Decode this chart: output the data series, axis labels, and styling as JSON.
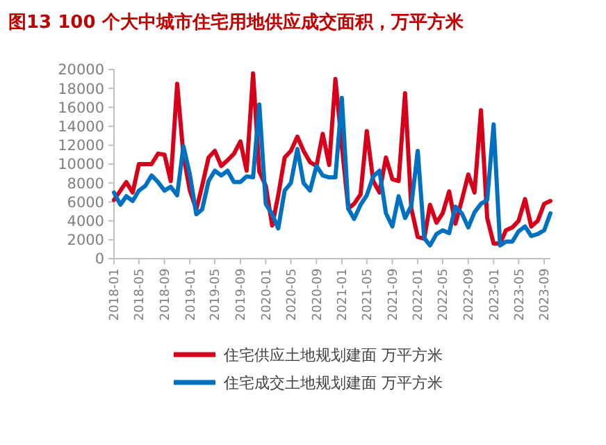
{
  "chart_data": {
    "type": "line",
    "title": "图13  100 个大中城市住宅用地供应成交面积，万平方米",
    "x": [
      "2018-01",
      "2018-02",
      "2018-03",
      "2018-04",
      "2018-05",
      "2018-06",
      "2018-07",
      "2018-08",
      "2018-09",
      "2018-10",
      "2018-11",
      "2018-12",
      "2019-01",
      "2019-02",
      "2019-03",
      "2019-04",
      "2019-05",
      "2019-06",
      "2019-07",
      "2019-08",
      "2019-09",
      "2019-10",
      "2019-11",
      "2019-12",
      "2020-01",
      "2020-02",
      "2020-03",
      "2020-04",
      "2020-05",
      "2020-06",
      "2020-07",
      "2020-08",
      "2020-09",
      "2020-10",
      "2020-11",
      "2020-12",
      "2021-01",
      "2021-02",
      "2021-03",
      "2021-04",
      "2021-05",
      "2021-06",
      "2021-07",
      "2021-08",
      "2021-09",
      "2021-10",
      "2021-11",
      "2021-12",
      "2022-01",
      "2022-02",
      "2022-03",
      "2022-04",
      "2022-05",
      "2022-06",
      "2022-07",
      "2022-08",
      "2022-09",
      "2022-10",
      "2022-11",
      "2022-12",
      "2023-01",
      "2023-02",
      "2023-03",
      "2023-04",
      "2023-05",
      "2023-06",
      "2023-07",
      "2023-08",
      "2023-09",
      "2023-10"
    ],
    "series": [
      {
        "name": "住宅供应土地规划建面 万平方米",
        "color": "#d7001a",
        "values": [
          6200,
          7200,
          8100,
          7000,
          10000,
          10000,
          10000,
          11100,
          11000,
          8200,
          18500,
          10900,
          7200,
          5200,
          7700,
          10700,
          11400,
          9800,
          10400,
          11100,
          12400,
          9300,
          19600,
          9200,
          7700,
          3500,
          6700,
          10700,
          11400,
          12900,
          11400,
          10200,
          9800,
          13200,
          9900,
          19000,
          11900,
          5300,
          5800,
          6800,
          13500,
          8200,
          7000,
          10700,
          8400,
          8200,
          17500,
          5300,
          2300,
          2100,
          5700,
          3800,
          4800,
          7100,
          3700,
          6200,
          8900,
          7000,
          15700,
          4300,
          1600,
          1600,
          3000,
          3300,
          4000,
          6300,
          3400,
          4000,
          5800,
          6100
        ]
      },
      {
        "name": "住宅成交土地规划建面 万平方米",
        "color": "#0070c0",
        "values": [
          7000,
          5700,
          6600,
          6100,
          7200,
          7700,
          8800,
          8100,
          7200,
          7600,
          6700,
          11900,
          8900,
          4700,
          5200,
          8200,
          9300,
          8800,
          9300,
          8100,
          8100,
          8700,
          8600,
          16300,
          5800,
          4700,
          3200,
          7200,
          8000,
          11600,
          8000,
          7200,
          9800,
          8800,
          8600,
          8600,
          17000,
          5300,
          4200,
          5700,
          6700,
          8700,
          9300,
          4800,
          3400,
          6600,
          4300,
          5600,
          11400,
          2200,
          1400,
          2600,
          3000,
          2700,
          5500,
          4800,
          3300,
          4900,
          5800,
          6200,
          14200,
          1400,
          1800,
          1800,
          2900,
          3400,
          2400,
          2600,
          3000,
          4800
        ]
      }
    ],
    "xlim": [
      "2018-01",
      "2023-10"
    ],
    "xticks": [
      "2018-01",
      "2018-05",
      "2018-09",
      "2019-01",
      "2019-05",
      "2019-09",
      "2020-01",
      "2020-05",
      "2020-09",
      "2021-01",
      "2021-05",
      "2021-09",
      "2022-01",
      "2022-05",
      "2022-09",
      "2023-01",
      "2023-05",
      "2023-09"
    ],
    "ylim": [
      0,
      20000
    ],
    "yticks": [
      0,
      2000,
      4000,
      6000,
      8000,
      10000,
      12000,
      14000,
      16000,
      18000,
      20000
    ],
    "grid": false,
    "legend": "bottom",
    "line_style": "solid",
    "marker": "none"
  }
}
